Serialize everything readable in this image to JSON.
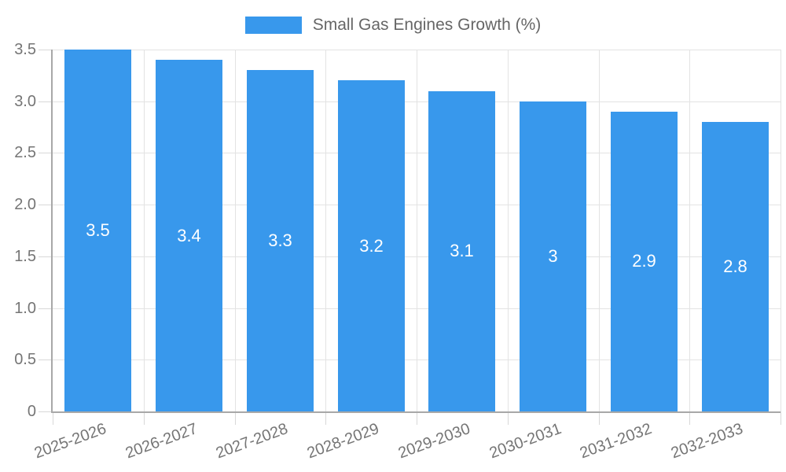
{
  "legend": {
    "label": "Small Gas Engines Growth (%)"
  },
  "chart_data": {
    "type": "bar",
    "title": "",
    "xlabel": "",
    "ylabel": "",
    "categories": [
      "2025-2026",
      "2026-2027",
      "2027-2028",
      "2028-2029",
      "2029-2030",
      "2030-2031",
      "2031-2032",
      "2032-2033"
    ],
    "values": [
      3.5,
      3.4,
      3.3,
      3.2,
      3.1,
      3.0,
      2.9,
      2.8
    ],
    "bar_labels": [
      "3.5",
      "3.4",
      "3.3",
      "3.2",
      "3.1",
      "3",
      "2.9",
      "2.8"
    ],
    "series_name": "Small Gas Engines Growth (%)",
    "ylim": [
      0,
      3.5
    ],
    "ytick_step": 0.5,
    "yticks": [
      "0",
      "0.5",
      "1.0",
      "1.5",
      "2.0",
      "2.5",
      "3.0",
      "3.5"
    ],
    "grid": true,
    "legend_position": "top-center",
    "colors": {
      "bar": "#3898ec",
      "grid": "#e3e3e3",
      "tick": "#d8d8d8",
      "axis": "#a8a8a8",
      "axis_text": "#757575",
      "bar_label_text": "#ffffff",
      "legend_text": "#666666"
    }
  }
}
